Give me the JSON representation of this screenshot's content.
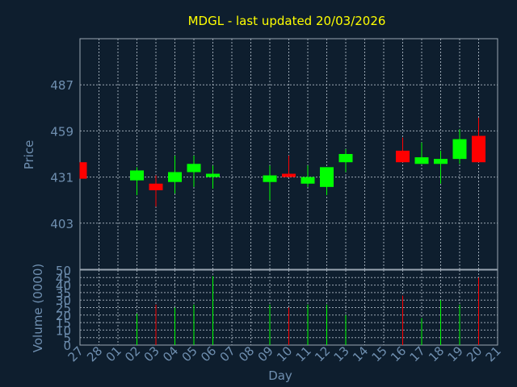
{
  "chart_data": {
    "type": "candlestick",
    "title": "MDGL - last updated 20/03/2026",
    "xlabel": "Day",
    "ylabel_price": "Price",
    "ylabel_volume": "Volume (0000)",
    "price_ylim": [
      375,
      515
    ],
    "price_ticks": [
      403,
      431,
      459,
      487
    ],
    "volume_ylim": [
      0,
      50
    ],
    "volume_ticks": [
      0,
      5,
      10,
      15,
      20,
      25,
      30,
      35,
      40,
      45,
      50
    ],
    "grid": true,
    "x_tick_labels": [
      "27",
      "28",
      "01",
      "02",
      "03",
      "04",
      "05",
      "06",
      "07",
      "08",
      "09",
      "10",
      "11",
      "12",
      "13",
      "14",
      "15",
      "16",
      "17",
      "18",
      "19",
      "20",
      "21"
    ],
    "candles": [
      {
        "day": "27",
        "open": 440,
        "close": 430,
        "high": 440,
        "low": 430,
        "volume": 0
      },
      {
        "day": "02",
        "open": 429,
        "close": 435,
        "high": 437,
        "low": 420,
        "volume": 21
      },
      {
        "day": "03",
        "open": 427,
        "close": 423,
        "high": 432,
        "low": 413,
        "volume": 27
      },
      {
        "day": "04",
        "open": 428,
        "close": 434,
        "high": 444,
        "low": 421,
        "volume": 25
      },
      {
        "day": "05",
        "open": 434,
        "close": 439,
        "high": 444,
        "low": 425,
        "volume": 27
      },
      {
        "day": "06",
        "open": 431,
        "close": 433,
        "high": 438,
        "low": 424,
        "volume": 46
      },
      {
        "day": "09",
        "open": 428,
        "close": 432,
        "high": 438,
        "low": 417,
        "volume": 27
      },
      {
        "day": "10",
        "open": 433,
        "close": 431,
        "high": 444,
        "low": 431,
        "volume": 25
      },
      {
        "day": "11",
        "open": 427,
        "close": 431,
        "high": 438,
        "low": 425,
        "volume": 27
      },
      {
        "day": "12",
        "open": 425,
        "close": 437,
        "high": 437,
        "low": 420,
        "volume": 27
      },
      {
        "day": "13",
        "open": 440,
        "close": 445,
        "high": 448,
        "low": 434,
        "volume": 20
      },
      {
        "day": "16",
        "open": 447,
        "close": 440,
        "high": 455,
        "low": 440,
        "volume": 33
      },
      {
        "day": "17",
        "open": 439,
        "close": 443,
        "high": 452,
        "low": 439,
        "volume": 18
      },
      {
        "day": "18",
        "open": 439,
        "close": 442,
        "high": 447,
        "low": 427,
        "volume": 30
      },
      {
        "day": "19",
        "open": 442,
        "close": 454,
        "high": 460,
        "low": 439,
        "volume": 27
      },
      {
        "day": "20",
        "open": 456,
        "close": 440,
        "high": 467,
        "low": 440,
        "volume": 45
      }
    ],
    "colors": {
      "background": "#0e1e2e",
      "up": "#00ff00",
      "down": "#ff0000",
      "title": "#ffff00",
      "axis_text": "#6f8fb0",
      "grid": "#9aa6b2"
    }
  }
}
